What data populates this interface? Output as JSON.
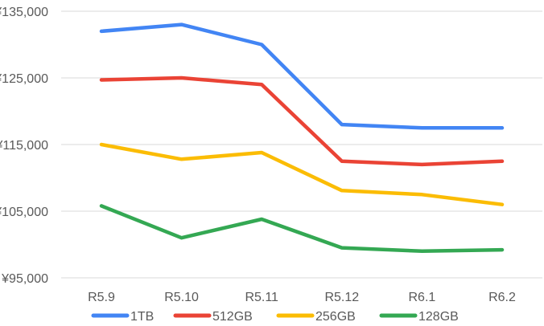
{
  "chart_data": {
    "type": "line",
    "categories": [
      "R5.9",
      "R5.10",
      "R5.11",
      "R5.12",
      "R6.1",
      "R6.2"
    ],
    "y_ticks": [
      "¥95,000",
      "¥105,000",
      "¥115,000",
      "¥125,000",
      "¥135,000"
    ],
    "ylim": [
      95000,
      135000
    ],
    "grid": true,
    "legend_position": "bottom",
    "series": [
      {
        "name": "1TB",
        "color": "#4285f4",
        "values": [
          132000,
          133000,
          130000,
          118000,
          117500,
          117500
        ]
      },
      {
        "name": "512GB",
        "color": "#ea4335",
        "values": [
          124700,
          125000,
          124000,
          112500,
          112000,
          112500
        ]
      },
      {
        "name": "256GB",
        "color": "#fbbc04",
        "values": [
          115000,
          112800,
          113800,
          108100,
          107500,
          106000
        ]
      },
      {
        "name": "128GB",
        "color": "#34a853",
        "values": [
          105800,
          101000,
          103800,
          99500,
          99000,
          99200
        ]
      }
    ]
  }
}
